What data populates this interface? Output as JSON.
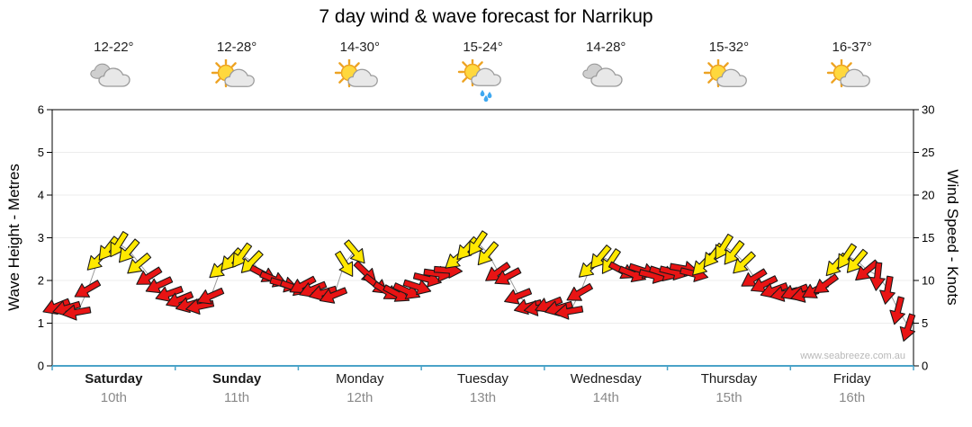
{
  "title": "7 day wind & wave forecast for Narrikup",
  "watermark": "www.seabreeze.com.au",
  "days": [
    {
      "name": "Saturday",
      "date": "10th",
      "temp": "12-22°",
      "icon": "cloudy",
      "bold": true
    },
    {
      "name": "Sunday",
      "date": "11th",
      "temp": "12-28°",
      "icon": "partly-sunny",
      "bold": true
    },
    {
      "name": "Monday",
      "date": "12th",
      "temp": "14-30°",
      "icon": "partly-sunny",
      "bold": false
    },
    {
      "name": "Tuesday",
      "date": "13th",
      "temp": "15-24°",
      "icon": "partly-sunny-rain",
      "bold": false
    },
    {
      "name": "Wednesday",
      "date": "14th",
      "temp": "14-28°",
      "icon": "cloudy",
      "bold": false
    },
    {
      "name": "Thursday",
      "date": "15th",
      "temp": "15-32°",
      "icon": "partly-sunny",
      "bold": false
    },
    {
      "name": "Friday",
      "date": "16th",
      "temp": "16-37°",
      "icon": "partly-sunny",
      "bold": false
    }
  ],
  "axes": {
    "left_label": "Wave Height - Metres",
    "left_ticks": [
      0,
      1,
      2,
      3,
      4,
      5,
      6
    ],
    "right_label": "Wind Speed - Knots",
    "right_ticks": [
      0,
      5,
      10,
      15,
      20,
      25,
      30
    ]
  },
  "colors": {
    "arrow_red": "#e81414",
    "arrow_yellow": "#ffe800",
    "arrow_outline": "#1a1a1a",
    "line": "#9a9a9a",
    "axis": "#000000",
    "axis_bottom": "#4aa3c8",
    "grid": "#ededed",
    "tick_text": "#000000"
  },
  "icon_colors": {
    "sun_fill": "#ffd83d",
    "sun_stroke": "#eda323",
    "cloud_fill": "#e8e8e8",
    "cloud_back": "#cfcfcf",
    "cloud_stroke": "#9a9a9a",
    "rain": "#3fa8f0"
  },
  "chart_data": {
    "type": "wind-vector-series",
    "title": "7 day wind & wave forecast for Narrikup",
    "x": {
      "unit": "hours",
      "range": [
        0,
        168
      ],
      "day_labels": [
        "Saturday 10th",
        "Sunday 11th",
        "Monday 12th",
        "Tuesday 13th",
        "Wednesday 14th",
        "Thursday 15th",
        "Friday 16th"
      ]
    },
    "left_axis": {
      "label": "Wave Height - Metres",
      "range": [
        0,
        6
      ]
    },
    "right_axis": {
      "label": "Wind Speed - Knots",
      "range": [
        0,
        30
      ]
    },
    "point_format": [
      "hour",
      "wind_knots",
      "arrow_rotation_deg",
      "color"
    ],
    "points": [
      [
        1,
        7,
        158,
        "red"
      ],
      [
        3,
        6.8,
        164,
        "red"
      ],
      [
        5,
        6.3,
        170,
        "red"
      ],
      [
        7,
        9,
        150,
        "red"
      ],
      [
        9,
        12.5,
        135,
        "yellow"
      ],
      [
        11,
        13.8,
        128,
        "yellow"
      ],
      [
        13,
        14.3,
        122,
        "yellow"
      ],
      [
        15,
        13.5,
        130,
        "yellow"
      ],
      [
        17,
        12,
        140,
        "yellow"
      ],
      [
        19,
        10.5,
        148,
        "red"
      ],
      [
        21,
        9.5,
        155,
        "red"
      ],
      [
        23,
        8.5,
        160,
        "red"
      ],
      [
        25,
        7.8,
        158,
        "red"
      ],
      [
        27,
        7.2,
        164,
        "red"
      ],
      [
        29,
        7,
        168,
        "red"
      ],
      [
        31,
        8.2,
        156,
        "red"
      ],
      [
        33,
        11.5,
        140,
        "yellow"
      ],
      [
        35,
        12.5,
        132,
        "yellow"
      ],
      [
        37,
        13,
        126,
        "yellow"
      ],
      [
        39,
        12.2,
        134,
        "yellow"
      ],
      [
        41,
        10.8,
        28,
        "red"
      ],
      [
        43,
        10.2,
        22,
        "red"
      ],
      [
        45,
        9.6,
        16,
        "red"
      ],
      [
        47,
        9.2,
        20,
        "red"
      ],
      [
        49,
        9.5,
        152,
        "red"
      ],
      [
        51,
        9,
        158,
        "red"
      ],
      [
        53,
        8.6,
        164,
        "red"
      ],
      [
        55,
        8.3,
        158,
        "red"
      ],
      [
        57,
        12,
        58,
        "yellow"
      ],
      [
        59,
        13.4,
        50,
        "yellow"
      ],
      [
        61,
        11,
        44,
        "red"
      ],
      [
        63,
        9.6,
        38,
        "red"
      ],
      [
        65,
        8.8,
        32,
        "red"
      ],
      [
        67,
        8.5,
        28,
        "red"
      ],
      [
        69,
        8.8,
        24,
        "red"
      ],
      [
        71,
        9.3,
        18,
        "red"
      ],
      [
        73,
        10.2,
        14,
        "red"
      ],
      [
        75,
        10.8,
        8,
        "red"
      ],
      [
        77,
        11.2,
        4,
        "red"
      ],
      [
        79,
        12.6,
        140,
        "yellow"
      ],
      [
        81,
        13.8,
        132,
        "yellow"
      ],
      [
        83,
        14.4,
        124,
        "yellow"
      ],
      [
        85,
        13.2,
        130,
        "yellow"
      ],
      [
        87,
        11,
        145,
        "red"
      ],
      [
        89,
        10.5,
        152,
        "red"
      ],
      [
        91,
        8.2,
        158,
        "red"
      ],
      [
        93,
        7,
        164,
        "red"
      ],
      [
        95,
        6.8,
        170,
        "red"
      ],
      [
        97,
        7.2,
        158,
        "red"
      ],
      [
        99,
        6.8,
        164,
        "red"
      ],
      [
        101,
        6.4,
        170,
        "red"
      ],
      [
        103,
        8.6,
        150,
        "red"
      ],
      [
        105,
        11.6,
        138,
        "yellow"
      ],
      [
        107,
        12.8,
        130,
        "yellow"
      ],
      [
        109,
        12.3,
        124,
        "yellow"
      ],
      [
        111,
        11.2,
        28,
        "red"
      ],
      [
        113,
        10.8,
        22,
        "red"
      ],
      [
        115,
        11.2,
        18,
        "red"
      ],
      [
        117,
        10.6,
        14,
        "red"
      ],
      [
        119,
        10.9,
        18,
        "red"
      ],
      [
        121,
        11,
        14,
        "red"
      ],
      [
        123,
        11.4,
        10,
        "red"
      ],
      [
        125,
        10.8,
        14,
        "red"
      ],
      [
        127,
        11.9,
        134,
        "yellow"
      ],
      [
        129,
        13,
        128,
        "yellow"
      ],
      [
        131,
        14,
        122,
        "yellow"
      ],
      [
        133,
        13.3,
        128,
        "yellow"
      ],
      [
        135,
        12.1,
        136,
        "yellow"
      ],
      [
        137,
        10.3,
        148,
        "red"
      ],
      [
        139,
        9.6,
        154,
        "red"
      ],
      [
        141,
        8.9,
        160,
        "red"
      ],
      [
        143,
        8.5,
        166,
        "red"
      ],
      [
        145,
        8.7,
        158,
        "red"
      ],
      [
        147,
        8.4,
        164,
        "red"
      ],
      [
        149,
        8.9,
        152,
        "red"
      ],
      [
        151,
        9.6,
        144,
        "red"
      ],
      [
        153,
        11.9,
        132,
        "yellow"
      ],
      [
        155,
        12.9,
        124,
        "yellow"
      ],
      [
        157,
        12.3,
        130,
        "yellow"
      ],
      [
        159,
        11.2,
        140,
        "red"
      ],
      [
        161,
        10.6,
        96,
        "red"
      ],
      [
        163,
        9,
        100,
        "red"
      ],
      [
        165,
        6.6,
        104,
        "red"
      ],
      [
        167,
        4.6,
        108,
        "red"
      ]
    ]
  }
}
